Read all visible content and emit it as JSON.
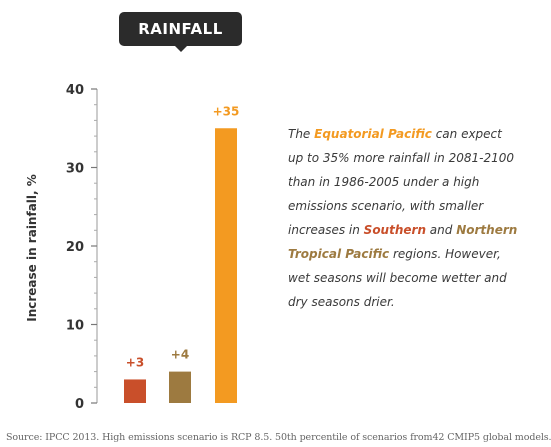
{
  "tag_label": "RAINFALL",
  "chart_data": {
    "type": "bar",
    "ylabel": "Increase in rainfall, %",
    "ylim": [
      0,
      40
    ],
    "yticks": [
      0,
      10,
      20,
      30,
      40
    ],
    "bars": [
      {
        "value": 3,
        "label": "+3",
        "color": "#c94f2a"
      },
      {
        "value": 4,
        "label": "+4",
        "color": "#9d7a40"
      },
      {
        "value": 35,
        "label": "+35",
        "color": "#f39a21"
      }
    ],
    "grid": false
  },
  "note": {
    "pre1": "The ",
    "h1": "Equatorial Pacific",
    "mid1": " can expect up to 35% more rainfall in 2081-2100 than in 1986-2005 under a high emissions scenario, with smaller increases in ",
    "h2": "Southern",
    "mid2": " and ",
    "h3": "Northern Tropical Pacific",
    "post": " regions. However, wet seasons will become wetter and dry seasons drier.",
    "h1_color": "#f39a21",
    "h2_color": "#c94f2a",
    "h3_color": "#9d7a40"
  },
  "source": "Source: IPCC 2013. High emissions scenario is RCP 8.5. 50th percentile of scenarios from42 CMIP5 global models."
}
